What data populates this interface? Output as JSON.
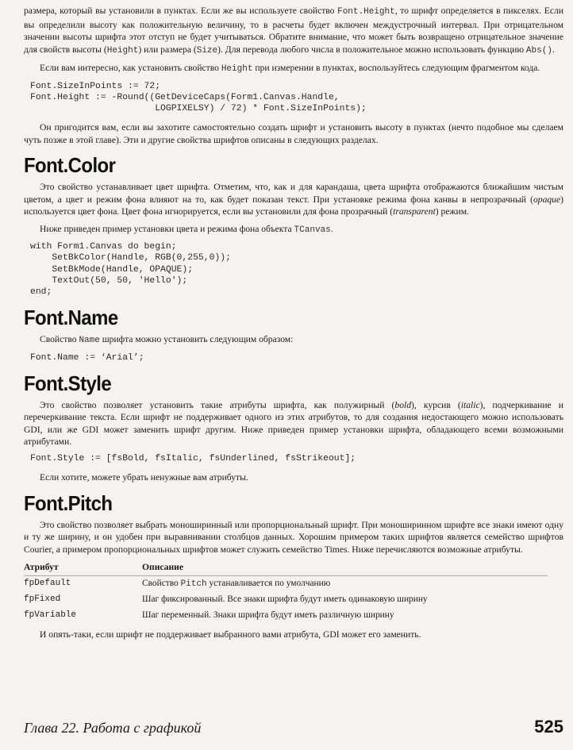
{
  "intro": {
    "p1": {
      "t1": "размера, который вы установили в пунктах. Если же вы используете свойство ",
      "c1": "Font.Height",
      "t2": ", то шрифт определяется в пикселях. Если вы определили высоту как положительную величину, то в расчеты будет включен междустрочный интервал. При отрицательном значении высоты шрифта этот отступ не будет учитываться. Обратите внимание, что может быть возвращено отрицательное значение для свойств высоты (",
      "c2": "Height",
      "t3": ") или размера (",
      "c3": "Size",
      "t4": "). Для перевода любого числа в положительное можно использовать функцию ",
      "c4": "Abs()",
      "t5": "."
    },
    "p2": {
      "t1": "Если вам интересно, как установить свойство ",
      "c1": "Height",
      "t2": " при измерении в пунктах, воспользуйтесь следующим фрагментом кода."
    },
    "code": "Font.SizeInPoints := 72;\nFont.Height := -Round((GetDeviceCaps(Form1.Canvas.Handle,\n                       LOGPIXELSY) / 72) * Font.SizeInPoints);",
    "p3": "Он пригодится вам, если вы захотите самостоятельно создать шрифт и установить высоту в пунктах (нечто подобное мы сделаем чуть позже в этой главе). Эти и другие свойства шрифтов описаны в следующих разделах."
  },
  "font_color": {
    "heading": "Font.Color",
    "p1": {
      "t1": "Это свойство устанавливает цвет шрифта. Отметим, что, как и для карандаша, цвета шрифта отображаются ближайшим чистым цветом, а цвет и режим фона влияют на то, как будет показан текст. При установке режима фона канвы в непрозрачный (",
      "e1": "opaque",
      "t2": ") используется цвет фона. Цвет фона игнорируется, если вы установили для фона прозрачный (",
      "e2": "transparent",
      "t3": ") режим."
    },
    "p2": {
      "t1": "Ниже приведен пример установки цвета и режима фона объекта ",
      "c1": "TCanvas",
      "t2": "."
    },
    "code": "with Form1.Canvas do begin;\n    SetBkColor(Handle, RGB(0,255,0));\n    SetBkMode(Handle, OPAQUE);\n    TextOut(50, 50, 'Hello');\nend;"
  },
  "font_name": {
    "heading": "Font.Name",
    "p1": {
      "t1": "Свойство ",
      "c1": "Name",
      "t2": " шрифта можно установить следующим образом:"
    },
    "code": "Font.Name := ‘Arial’;"
  },
  "font_style": {
    "heading": "Font.Style",
    "p1": {
      "t1": "Это свойство позволяет установить такие атрибуты шрифта, как полужирный (",
      "e1": "bold",
      "t2": "), курсив (",
      "e2": "italic",
      "t3": "), подчеркивание и перечеркивание текста. Если шрифт не поддерживает одного из этих атрибутов, то для создания недостающего можно использовать GDI, или же GDI может заменить шрифт другим. Ниже приведен пример установки шрифта, обладающего всеми возможными атрибутами."
    },
    "code": "Font.Style := [fsBold, fsItalic, fsUnderlined, fsStrikeout];",
    "p2": "Если хотите, можете убрать ненужные вам атрибуты."
  },
  "font_pitch": {
    "heading": "Font.Pitch",
    "p1": "Это свойство позволяет выбрать моноширинный или пропорциональный шрифт. При моноширинном шрифте все знаки имеют одну и ту же ширину, и он удобен при выравнивании столбцов данных. Хорошим примером таких шрифтов является семейство шрифтов Courier, а примером пропорциональных шрифтов может служить семейство Times. Ниже перечисляются возможные атрибуты.",
    "table": {
      "col_attr": "Атрибут",
      "col_desc": "Описание",
      "rows": [
        {
          "attr": "fpDefault",
          "desc_t1": "Свойство ",
          "desc_c1": "Pitch",
          "desc_t2": " устанавливается по умолчанию"
        },
        {
          "attr": "fpFixed",
          "desc_t1": "Шаг фиксированный. Все знаки шрифта будут иметь одинаковую ширину",
          "desc_c1": "",
          "desc_t2": ""
        },
        {
          "attr": "fpVariable",
          "desc_t1": "Шаг переменный. Знаки шрифта будут иметь различную ширину",
          "desc_c1": "",
          "desc_t2": ""
        }
      ]
    },
    "p2": "И опять-таки, если шрифт не поддерживает выбранного вами атрибута, GDI может его заменить."
  },
  "footer": {
    "chapter": "Глава 22. Работа с графикой",
    "page_number": "525"
  }
}
